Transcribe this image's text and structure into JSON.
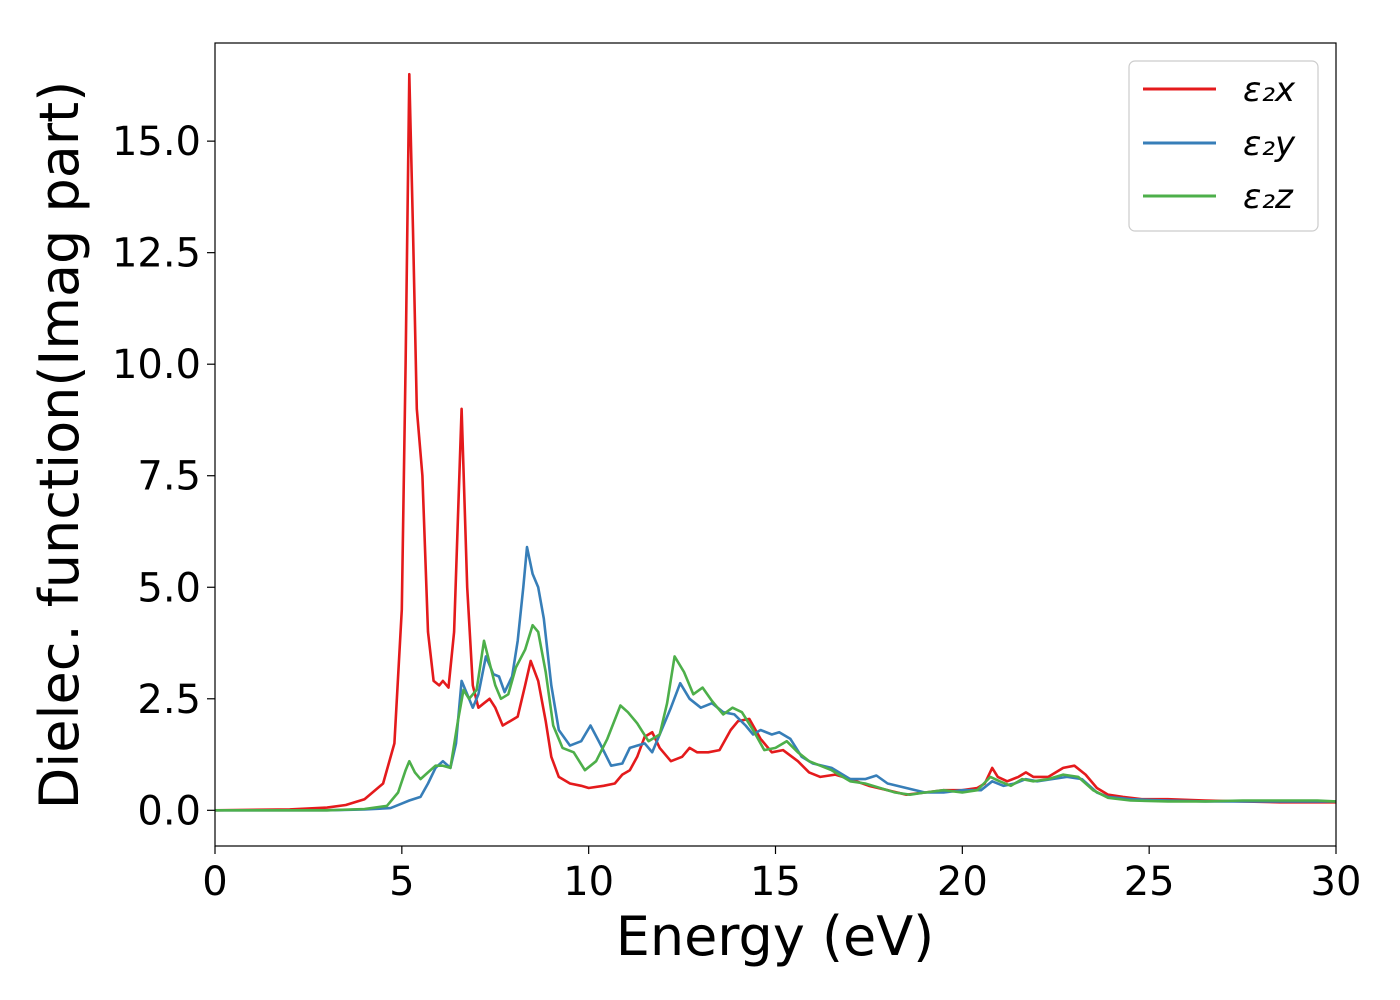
{
  "chart_data": {
    "type": "line",
    "xlabel": "Energy (eV)",
    "ylabel": "Dielec. function(Imag part)",
    "xlim": [
      0,
      30
    ],
    "ylim": [
      -0.8,
      17.2
    ],
    "xticks": [
      0,
      5,
      10,
      15,
      20,
      25,
      30
    ],
    "xtick_labels": [
      "0",
      "5",
      "10",
      "15",
      "20",
      "25",
      "30"
    ],
    "yticks": [
      0.0,
      2.5,
      5.0,
      7.5,
      10.0,
      12.5,
      15.0
    ],
    "ytick_labels": [
      "0.0",
      "2.5",
      "5.0",
      "7.5",
      "10.0",
      "12.5",
      "15.0"
    ],
    "grid": false,
    "legend_position": "top-right",
    "series": [
      {
        "name": "ε₂x",
        "color": "#e41a1c",
        "points": [
          [
            0,
            0
          ],
          [
            2,
            0.02
          ],
          [
            3,
            0.06
          ],
          [
            3.5,
            0.12
          ],
          [
            4,
            0.25
          ],
          [
            4.5,
            0.6
          ],
          [
            4.8,
            1.5
          ],
          [
            5.0,
            4.5
          ],
          [
            5.1,
            10.0
          ],
          [
            5.2,
            16.5
          ],
          [
            5.3,
            13.0
          ],
          [
            5.4,
            9.0
          ],
          [
            5.55,
            7.5
          ],
          [
            5.7,
            4.0
          ],
          [
            5.85,
            2.9
          ],
          [
            6.0,
            2.8
          ],
          [
            6.1,
            2.9
          ],
          [
            6.25,
            2.75
          ],
          [
            6.4,
            4.0
          ],
          [
            6.6,
            9.0
          ],
          [
            6.75,
            5.0
          ],
          [
            6.9,
            2.8
          ],
          [
            7.05,
            2.3
          ],
          [
            7.2,
            2.4
          ],
          [
            7.35,
            2.5
          ],
          [
            7.5,
            2.3
          ],
          [
            7.7,
            1.9
          ],
          [
            7.9,
            2.0
          ],
          [
            8.1,
            2.1
          ],
          [
            8.3,
            2.8
          ],
          [
            8.45,
            3.35
          ],
          [
            8.65,
            2.9
          ],
          [
            8.85,
            2.0
          ],
          [
            9.0,
            1.2
          ],
          [
            9.2,
            0.75
          ],
          [
            9.5,
            0.6
          ],
          [
            9.8,
            0.55
          ],
          [
            10.0,
            0.5
          ],
          [
            10.4,
            0.55
          ],
          [
            10.7,
            0.6
          ],
          [
            10.9,
            0.8
          ],
          [
            11.1,
            0.9
          ],
          [
            11.3,
            1.2
          ],
          [
            11.5,
            1.65
          ],
          [
            11.7,
            1.75
          ],
          [
            11.9,
            1.4
          ],
          [
            12.2,
            1.1
          ],
          [
            12.5,
            1.2
          ],
          [
            12.7,
            1.4
          ],
          [
            12.9,
            1.3
          ],
          [
            13.2,
            1.3
          ],
          [
            13.5,
            1.35
          ],
          [
            13.8,
            1.8
          ],
          [
            14.0,
            2.0
          ],
          [
            14.3,
            2.05
          ],
          [
            14.6,
            1.6
          ],
          [
            14.9,
            1.3
          ],
          [
            15.2,
            1.35
          ],
          [
            15.6,
            1.1
          ],
          [
            15.9,
            0.85
          ],
          [
            16.2,
            0.75
          ],
          [
            16.6,
            0.8
          ],
          [
            17.0,
            0.7
          ],
          [
            17.5,
            0.55
          ],
          [
            18.0,
            0.45
          ],
          [
            18.5,
            0.35
          ],
          [
            19.0,
            0.4
          ],
          [
            19.5,
            0.45
          ],
          [
            20.0,
            0.45
          ],
          [
            20.4,
            0.5
          ],
          [
            20.6,
            0.6
          ],
          [
            20.8,
            0.95
          ],
          [
            20.95,
            0.75
          ],
          [
            21.2,
            0.65
          ],
          [
            21.5,
            0.75
          ],
          [
            21.7,
            0.85
          ],
          [
            21.9,
            0.75
          ],
          [
            22.3,
            0.75
          ],
          [
            22.7,
            0.95
          ],
          [
            23.0,
            1.0
          ],
          [
            23.3,
            0.8
          ],
          [
            23.6,
            0.5
          ],
          [
            23.9,
            0.35
          ],
          [
            24.3,
            0.3
          ],
          [
            24.8,
            0.25
          ],
          [
            25.5,
            0.25
          ],
          [
            26.5,
            0.22
          ],
          [
            27.5,
            0.2
          ],
          [
            28.5,
            0.18
          ],
          [
            29.5,
            0.18
          ],
          [
            30,
            0.18
          ]
        ]
      },
      {
        "name": "ε₂y",
        "color": "#377eb8",
        "points": [
          [
            0,
            0
          ],
          [
            3,
            0.0
          ],
          [
            4,
            0.02
          ],
          [
            4.7,
            0.05
          ],
          [
            5.0,
            0.15
          ],
          [
            5.2,
            0.22
          ],
          [
            5.5,
            0.3
          ],
          [
            5.7,
            0.6
          ],
          [
            5.9,
            0.95
          ],
          [
            6.1,
            1.1
          ],
          [
            6.3,
            0.95
          ],
          [
            6.45,
            1.5
          ],
          [
            6.6,
            2.9
          ],
          [
            6.75,
            2.6
          ],
          [
            6.9,
            2.3
          ],
          [
            7.05,
            2.6
          ],
          [
            7.25,
            3.45
          ],
          [
            7.45,
            3.05
          ],
          [
            7.6,
            3.0
          ],
          [
            7.75,
            2.65
          ],
          [
            7.95,
            3.0
          ],
          [
            8.1,
            3.8
          ],
          [
            8.25,
            5.0
          ],
          [
            8.35,
            5.9
          ],
          [
            8.5,
            5.3
          ],
          [
            8.65,
            5.0
          ],
          [
            8.8,
            4.3
          ],
          [
            9.0,
            2.8
          ],
          [
            9.2,
            1.8
          ],
          [
            9.5,
            1.45
          ],
          [
            9.8,
            1.55
          ],
          [
            10.05,
            1.9
          ],
          [
            10.3,
            1.5
          ],
          [
            10.6,
            1.0
          ],
          [
            10.9,
            1.05
          ],
          [
            11.1,
            1.4
          ],
          [
            11.3,
            1.45
          ],
          [
            11.5,
            1.5
          ],
          [
            11.7,
            1.3
          ],
          [
            11.9,
            1.7
          ],
          [
            12.2,
            2.3
          ],
          [
            12.45,
            2.85
          ],
          [
            12.7,
            2.5
          ],
          [
            13.0,
            2.3
          ],
          [
            13.3,
            2.4
          ],
          [
            13.6,
            2.2
          ],
          [
            13.9,
            2.15
          ],
          [
            14.2,
            1.9
          ],
          [
            14.4,
            1.7
          ],
          [
            14.6,
            1.8
          ],
          [
            14.9,
            1.7
          ],
          [
            15.1,
            1.75
          ],
          [
            15.4,
            1.6
          ],
          [
            15.7,
            1.2
          ],
          [
            16.0,
            1.05
          ],
          [
            16.5,
            0.95
          ],
          [
            17.0,
            0.7
          ],
          [
            17.4,
            0.7
          ],
          [
            17.7,
            0.78
          ],
          [
            18.0,
            0.6
          ],
          [
            18.5,
            0.5
          ],
          [
            19.0,
            0.4
          ],
          [
            19.5,
            0.4
          ],
          [
            20.0,
            0.45
          ],
          [
            20.5,
            0.45
          ],
          [
            20.8,
            0.65
          ],
          [
            21.1,
            0.55
          ],
          [
            21.4,
            0.6
          ],
          [
            21.7,
            0.7
          ],
          [
            22.0,
            0.65
          ],
          [
            22.4,
            0.7
          ],
          [
            22.8,
            0.75
          ],
          [
            23.2,
            0.7
          ],
          [
            23.6,
            0.4
          ],
          [
            23.9,
            0.3
          ],
          [
            24.5,
            0.25
          ],
          [
            25.5,
            0.22
          ],
          [
            26.5,
            0.2
          ],
          [
            27.5,
            0.2
          ],
          [
            28.5,
            0.2
          ],
          [
            29.5,
            0.2
          ],
          [
            30,
            0.2
          ]
        ]
      },
      {
        "name": "ε₂z",
        "color": "#4daf4a",
        "points": [
          [
            0,
            0
          ],
          [
            3,
            0.0
          ],
          [
            4,
            0.03
          ],
          [
            4.6,
            0.1
          ],
          [
            4.9,
            0.4
          ],
          [
            5.1,
            0.9
          ],
          [
            5.2,
            1.1
          ],
          [
            5.35,
            0.85
          ],
          [
            5.5,
            0.7
          ],
          [
            5.7,
            0.85
          ],
          [
            5.9,
            1.0
          ],
          [
            6.1,
            1.0
          ],
          [
            6.3,
            0.95
          ],
          [
            6.5,
            2.0
          ],
          [
            6.65,
            2.7
          ],
          [
            6.8,
            2.5
          ],
          [
            7.0,
            2.7
          ],
          [
            7.2,
            3.8
          ],
          [
            7.35,
            3.3
          ],
          [
            7.5,
            2.8
          ],
          [
            7.65,
            2.5
          ],
          [
            7.85,
            2.6
          ],
          [
            8.05,
            3.2
          ],
          [
            8.3,
            3.6
          ],
          [
            8.5,
            4.15
          ],
          [
            8.65,
            4.0
          ],
          [
            8.85,
            3.1
          ],
          [
            9.05,
            1.9
          ],
          [
            9.3,
            1.4
          ],
          [
            9.6,
            1.3
          ],
          [
            9.9,
            0.9
          ],
          [
            10.2,
            1.1
          ],
          [
            10.5,
            1.6
          ],
          [
            10.85,
            2.35
          ],
          [
            11.05,
            2.2
          ],
          [
            11.3,
            1.95
          ],
          [
            11.6,
            1.55
          ],
          [
            11.9,
            1.7
          ],
          [
            12.1,
            2.4
          ],
          [
            12.3,
            3.45
          ],
          [
            12.55,
            3.1
          ],
          [
            12.8,
            2.6
          ],
          [
            13.05,
            2.75
          ],
          [
            13.3,
            2.45
          ],
          [
            13.6,
            2.15
          ],
          [
            13.85,
            2.3
          ],
          [
            14.1,
            2.2
          ],
          [
            14.4,
            1.8
          ],
          [
            14.7,
            1.35
          ],
          [
            15.0,
            1.4
          ],
          [
            15.3,
            1.55
          ],
          [
            15.6,
            1.3
          ],
          [
            15.9,
            1.1
          ],
          [
            16.2,
            1.0
          ],
          [
            16.5,
            0.9
          ],
          [
            17.0,
            0.65
          ],
          [
            17.4,
            0.6
          ],
          [
            17.8,
            0.5
          ],
          [
            18.2,
            0.4
          ],
          [
            18.6,
            0.35
          ],
          [
            19.0,
            0.4
          ],
          [
            19.5,
            0.45
          ],
          [
            20.0,
            0.4
          ],
          [
            20.4,
            0.45
          ],
          [
            20.75,
            0.75
          ],
          [
            21.0,
            0.65
          ],
          [
            21.3,
            0.55
          ],
          [
            21.6,
            0.7
          ],
          [
            21.9,
            0.65
          ],
          [
            22.3,
            0.7
          ],
          [
            22.7,
            0.8
          ],
          [
            23.1,
            0.75
          ],
          [
            23.5,
            0.45
          ],
          [
            23.9,
            0.28
          ],
          [
            24.5,
            0.22
          ],
          [
            25.5,
            0.2
          ],
          [
            26.5,
            0.2
          ],
          [
            27.5,
            0.22
          ],
          [
            28.5,
            0.22
          ],
          [
            29.5,
            0.22
          ],
          [
            30,
            0.2
          ]
        ]
      }
    ]
  }
}
